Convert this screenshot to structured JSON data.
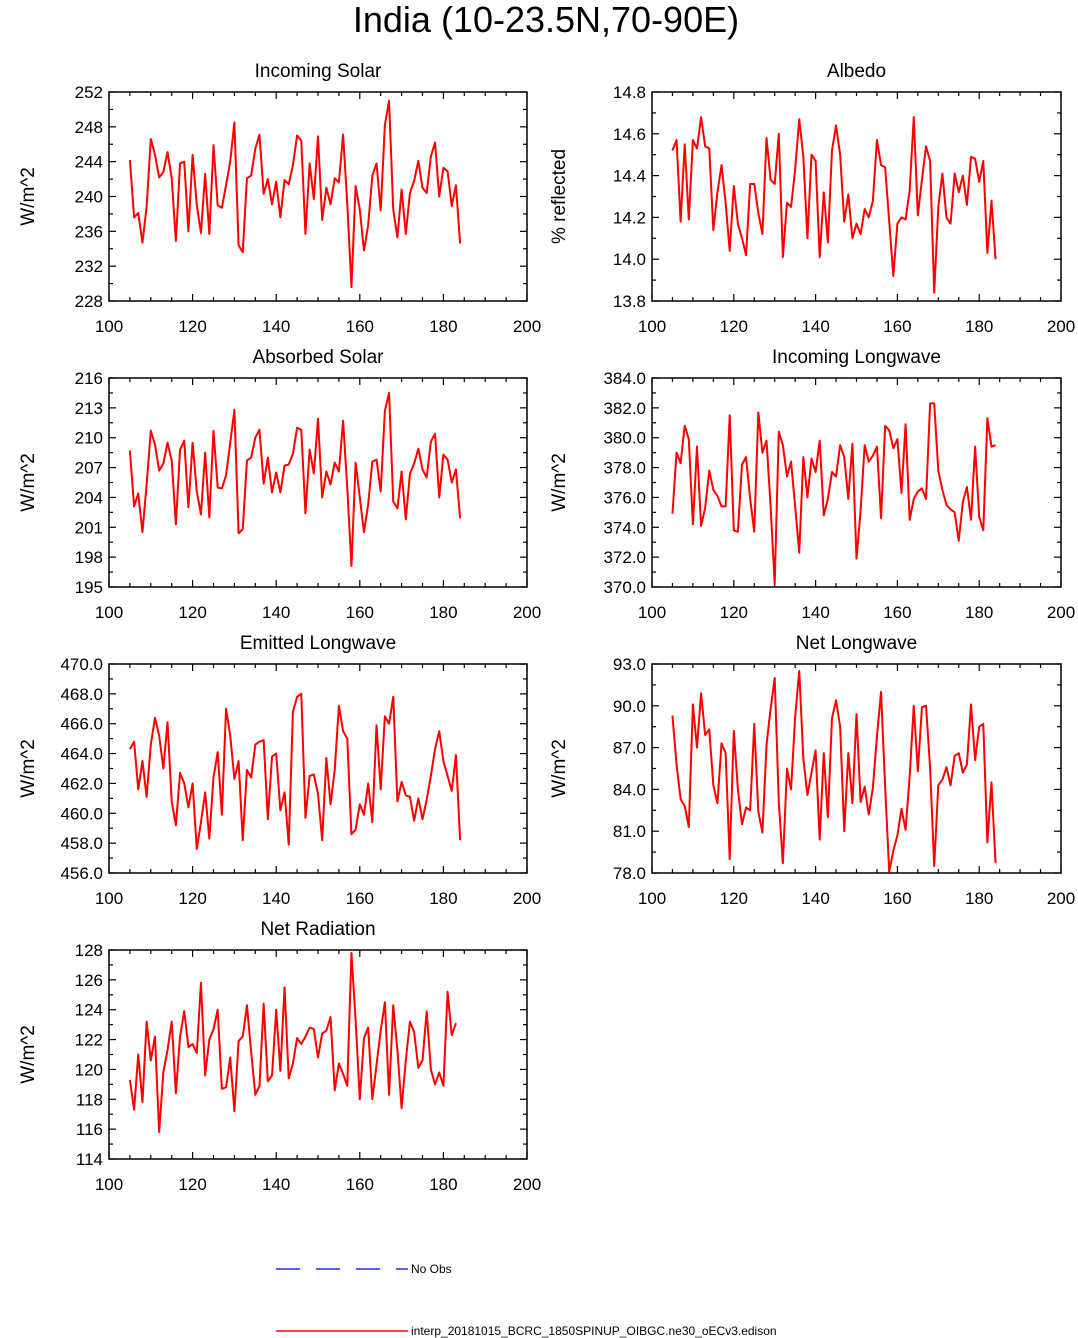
{
  "page_title": "India (10-23.5N,70-90E)",
  "legend": {
    "obs_label": "No Obs",
    "model_label": "interp_20181015_BCRC_1850SPINUP_OIBGC.ne30_oECv3.edison"
  },
  "colors": {
    "model": "#ff0000",
    "obs": "#0000ff",
    "axis": "#000000"
  },
  "chart_data": [
    {
      "id": "incoming-solar",
      "type": "line",
      "title": "Incoming Solar",
      "ylabel": "W/m^2",
      "xlim": [
        100,
        200
      ],
      "ylim": [
        228,
        252
      ],
      "xticks": [
        100,
        120,
        140,
        160,
        180,
        200
      ],
      "yticks": [
        228,
        232,
        236,
        240,
        244,
        248,
        252
      ],
      "ytick_decimals": 0,
      "series": [
        {
          "name": "model",
          "x0": 105,
          "values": [
            244.2,
            237.6,
            238.1,
            234.7,
            238.8,
            246.6,
            244.8,
            242.2,
            242.8,
            245.1,
            242.1,
            234.9,
            243.8,
            244.0,
            236.0,
            244.8,
            239.0,
            235.8,
            242.6,
            235.7,
            245.9,
            239.0,
            238.7,
            241.3,
            244.0,
            248.5,
            234.4,
            233.6,
            242.1,
            242.4,
            245.5,
            247.1,
            240.3,
            242.0,
            239.1,
            241.7,
            237.6,
            241.9,
            241.4,
            243.6,
            247.0,
            246.4,
            235.7,
            243.8,
            239.7,
            246.9,
            237.3,
            241.0,
            239.1,
            242.1,
            241.6,
            247.1,
            239.2,
            229.6,
            241.2,
            238.5,
            233.8,
            236.7,
            242.4,
            243.8,
            238.4,
            248.2,
            251.0,
            238.5,
            235.3,
            240.8,
            235.7,
            240.4,
            241.8,
            244.1,
            241.0,
            240.4,
            244.6,
            246.2,
            240.0,
            243.3,
            242.9,
            238.9,
            241.3,
            234.6
          ]
        }
      ]
    },
    {
      "id": "albedo",
      "type": "line",
      "title": "Albedo",
      "ylabel": "% reflected",
      "xlim": [
        100,
        200
      ],
      "ylim": [
        13.8,
        14.8
      ],
      "xticks": [
        100,
        120,
        140,
        160,
        180,
        200
      ],
      "yticks": [
        13.8,
        14.0,
        14.2,
        14.4,
        14.6,
        14.8
      ],
      "ytick_decimals": 1,
      "series": [
        {
          "name": "model",
          "x0": 105,
          "values": [
            14.52,
            14.57,
            14.18,
            14.55,
            14.19,
            14.57,
            14.53,
            14.68,
            14.54,
            14.53,
            14.14,
            14.32,
            14.45,
            14.27,
            14.04,
            14.35,
            14.17,
            14.1,
            14.02,
            14.36,
            14.36,
            14.22,
            14.12,
            14.58,
            14.38,
            14.36,
            14.6,
            14.01,
            14.27,
            14.25,
            14.43,
            14.67,
            14.49,
            14.1,
            14.5,
            14.47,
            14.01,
            14.32,
            14.08,
            14.52,
            14.64,
            14.5,
            14.18,
            14.31,
            14.1,
            14.17,
            14.12,
            14.24,
            14.2,
            14.28,
            14.57,
            14.45,
            14.44,
            14.18,
            13.92,
            14.17,
            14.2,
            14.19,
            14.33,
            14.68,
            14.21,
            14.38,
            14.54,
            14.47,
            13.84,
            14.25,
            14.41,
            14.2,
            14.17,
            14.41,
            14.32,
            14.4,
            14.26,
            14.49,
            14.48,
            14.37,
            14.47,
            14.03,
            14.28,
            14.0
          ]
        }
      ]
    },
    {
      "id": "absorbed-solar",
      "type": "line",
      "title": "Absorbed Solar",
      "ylabel": "W/m^2",
      "xlim": [
        100,
        200
      ],
      "ylim": [
        195,
        216
      ],
      "xticks": [
        100,
        120,
        140,
        160,
        180,
        200
      ],
      "yticks": [
        195,
        198,
        201,
        204,
        207,
        210,
        213,
        216
      ],
      "ytick_decimals": 0,
      "series": [
        {
          "name": "model",
          "x0": 105,
          "values": [
            208.7,
            203.1,
            204.4,
            200.5,
            205.3,
            210.7,
            209.3,
            206.7,
            207.4,
            209.5,
            207.7,
            201.3,
            208.8,
            209.7,
            203.0,
            209.5,
            204.6,
            202.3,
            208.5,
            202.0,
            210.7,
            205.0,
            204.9,
            206.2,
            209.5,
            212.8,
            200.4,
            200.8,
            207.7,
            208.0,
            210.0,
            210.8,
            205.4,
            208.0,
            204.5,
            206.5,
            204.5,
            207.2,
            207.3,
            208.4,
            211.0,
            210.8,
            202.4,
            208.8,
            206.4,
            211.9,
            204.0,
            206.6,
            205.3,
            207.5,
            206.6,
            211.7,
            205.0,
            197.1,
            207.5,
            204.0,
            200.5,
            203.3,
            207.6,
            207.8,
            204.6,
            212.7,
            214.5,
            203.6,
            202.9,
            206.6,
            201.8,
            206.4,
            207.4,
            208.9,
            206.8,
            206.0,
            209.6,
            210.4,
            204.0,
            208.3,
            207.8,
            205.5,
            206.8,
            201.9
          ]
        }
      ]
    },
    {
      "id": "incoming-longwave",
      "type": "line",
      "title": "Incoming Longwave",
      "ylabel": "W/m^2",
      "xlim": [
        100,
        200
      ],
      "ylim": [
        370,
        384
      ],
      "xticks": [
        100,
        120,
        140,
        160,
        180,
        200
      ],
      "yticks": [
        370,
        372,
        374,
        376,
        378,
        380,
        382,
        384
      ],
      "ytick_decimals": 1,
      "series": [
        {
          "name": "model",
          "x0": 105,
          "values": [
            374.9,
            379.0,
            378.3,
            380.8,
            379.9,
            374.2,
            379.4,
            374.1,
            375.3,
            377.8,
            376.5,
            376.1,
            375.4,
            375.4,
            381.5,
            373.8,
            373.7,
            378.2,
            378.7,
            375.9,
            373.7,
            381.7,
            379.0,
            379.8,
            375.4,
            370.2,
            380.4,
            379.5,
            377.4,
            378.4,
            375.4,
            372.3,
            378.7,
            376.0,
            378.6,
            377.7,
            379.8,
            374.8,
            375.9,
            377.7,
            377.4,
            379.5,
            378.7,
            375.9,
            379.6,
            371.9,
            375.1,
            379.5,
            378.4,
            378.8,
            379.4,
            374.6,
            380.8,
            380.5,
            379.3,
            379.9,
            376.3,
            380.9,
            374.5,
            375.9,
            376.4,
            376.6,
            375.9,
            382.3,
            382.3,
            377.8,
            376.5,
            375.5,
            375.2,
            375.0,
            373.1,
            375.7,
            376.7,
            374.5,
            379.4,
            374.7,
            373.8,
            381.3,
            379.4,
            379.5
          ]
        }
      ]
    },
    {
      "id": "emitted-longwave",
      "type": "line",
      "title": "Emitted Longwave",
      "ylabel": "W/m^2",
      "xlim": [
        100,
        200
      ],
      "ylim": [
        456,
        470
      ],
      "xticks": [
        100,
        120,
        140,
        160,
        180,
        200
      ],
      "yticks": [
        456,
        458,
        460,
        462,
        464,
        466,
        468,
        470
      ],
      "ytick_decimals": 1,
      "series": [
        {
          "name": "model",
          "x0": 105,
          "values": [
            464.3,
            464.8,
            461.6,
            463.5,
            461.1,
            464.6,
            466.4,
            465.2,
            463.0,
            466.1,
            460.8,
            459.2,
            462.7,
            462.0,
            460.4,
            462.0,
            457.6,
            459.4,
            461.4,
            458.3,
            462.4,
            464.1,
            459.9,
            467.0,
            465.2,
            462.3,
            463.5,
            458.2,
            462.9,
            462.4,
            464.6,
            464.8,
            464.9,
            459.6,
            463.8,
            464.0,
            460.2,
            461.4,
            457.9,
            466.8,
            467.8,
            468.0,
            459.7,
            462.5,
            462.6,
            461.3,
            458.2,
            463.7,
            460.6,
            462.9,
            467.2,
            465.5,
            465.0,
            458.6,
            458.9,
            460.6,
            459.9,
            462.0,
            459.4,
            465.9,
            461.6,
            466.5,
            466.0,
            467.8,
            460.8,
            462.1,
            461.2,
            461.1,
            459.5,
            461.0,
            459.6,
            460.9,
            462.5,
            464.3,
            465.5,
            463.5,
            462.5,
            461.5,
            463.9,
            458.2
          ]
        }
      ]
    },
    {
      "id": "net-longwave",
      "type": "line",
      "title": "Net Longwave",
      "ylabel": "W/m^2",
      "xlim": [
        100,
        200
      ],
      "ylim": [
        78,
        93
      ],
      "xticks": [
        100,
        120,
        140,
        160,
        180,
        200
      ],
      "yticks": [
        78,
        81,
        84,
        87,
        90,
        93
      ],
      "ytick_decimals": 1,
      "series": [
        {
          "name": "model",
          "x0": 105,
          "values": [
            89.3,
            85.8,
            83.3,
            82.8,
            81.3,
            90.1,
            87.0,
            90.9,
            87.9,
            88.3,
            84.3,
            83.0,
            87.3,
            86.6,
            79.0,
            88.2,
            84.0,
            81.5,
            82.7,
            82.5,
            88.7,
            82.4,
            80.9,
            87.2,
            89.8,
            92.0,
            83.1,
            78.7,
            85.5,
            84.0,
            89.2,
            92.5,
            86.2,
            83.6,
            85.2,
            86.8,
            80.4,
            86.6,
            82.0,
            89.1,
            90.4,
            88.5,
            81.0,
            86.6,
            83.0,
            89.4,
            83.1,
            84.2,
            82.2,
            84.1,
            87.8,
            91.0,
            84.2,
            78.1,
            79.6,
            80.7,
            82.6,
            81.1,
            84.9,
            90.0,
            85.3,
            89.9,
            90.0,
            85.5,
            78.5,
            84.3,
            84.7,
            85.6,
            84.3,
            86.4,
            86.6,
            85.2,
            85.8,
            90.1,
            86.1,
            88.5,
            88.7,
            80.2,
            84.5,
            78.7
          ]
        }
      ]
    },
    {
      "id": "net-radiation",
      "type": "line",
      "title": "Net Radiation",
      "ylabel": "W/m^2",
      "xlim": [
        100,
        200
      ],
      "ylim": [
        114,
        128
      ],
      "xticks": [
        100,
        120,
        140,
        160,
        180,
        200
      ],
      "yticks": [
        114,
        116,
        118,
        120,
        122,
        124,
        126,
        128
      ],
      "ytick_decimals": 0,
      "series": [
        {
          "name": "model",
          "x0": 105,
          "values": [
            119.3,
            117.3,
            121.0,
            117.8,
            123.2,
            120.6,
            122.2,
            115.8,
            119.8,
            121.3,
            123.2,
            118.4,
            122.2,
            123.9,
            121.5,
            121.7,
            121.1,
            125.8,
            119.6,
            122.0,
            122.7,
            124.0,
            118.7,
            118.8,
            120.8,
            117.2,
            121.9,
            122.2,
            124.3,
            121.2,
            118.3,
            118.9,
            124.4,
            119.2,
            119.6,
            124.0,
            119.9,
            125.5,
            119.4,
            120.4,
            122.1,
            121.7,
            122.2,
            122.8,
            122.7,
            120.8,
            122.4,
            122.6,
            123.5,
            118.6,
            120.4,
            119.7,
            118.9,
            127.8,
            123.3,
            118.0,
            122.1,
            122.8,
            118.0,
            120.3,
            122.6,
            124.5,
            118.3,
            124.3,
            121.3,
            117.4,
            120.6,
            123.2,
            122.5,
            120.1,
            120.6,
            123.9,
            120.0,
            119.0,
            119.8,
            118.9,
            125.2,
            122.3,
            123.1
          ]
        }
      ]
    }
  ]
}
